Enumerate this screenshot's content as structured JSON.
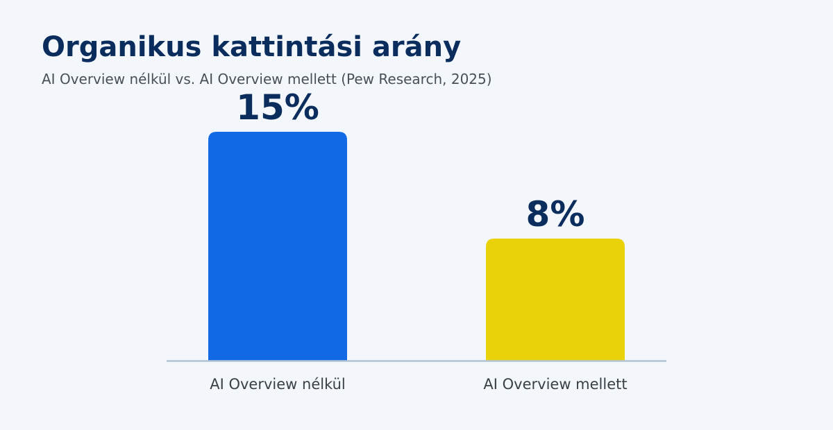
{
  "chart_data": {
    "type": "bar",
    "title": "Organikus kattintási arány",
    "subtitle": "AI Overview nélkül vs. AI Overview mellett (Pew Research, 2025)",
    "categories": [
      "AI Overview nélkül",
      "AI Overview mellett"
    ],
    "values": [
      15,
      8
    ],
    "value_labels": [
      "15%",
      "8%"
    ],
    "unit": "%",
    "colors": [
      "#1269e6",
      "#ead20b"
    ],
    "ylim": [
      0,
      15
    ],
    "grid": false,
    "legend": "none"
  },
  "colors": {
    "background": "#f3f7fb",
    "title": "#0a2d5e",
    "subtitle": "#4a4f57",
    "value_label": "#0a2d5e",
    "category_label": "#3b3f46",
    "baseline": "#b2c2d2"
  }
}
